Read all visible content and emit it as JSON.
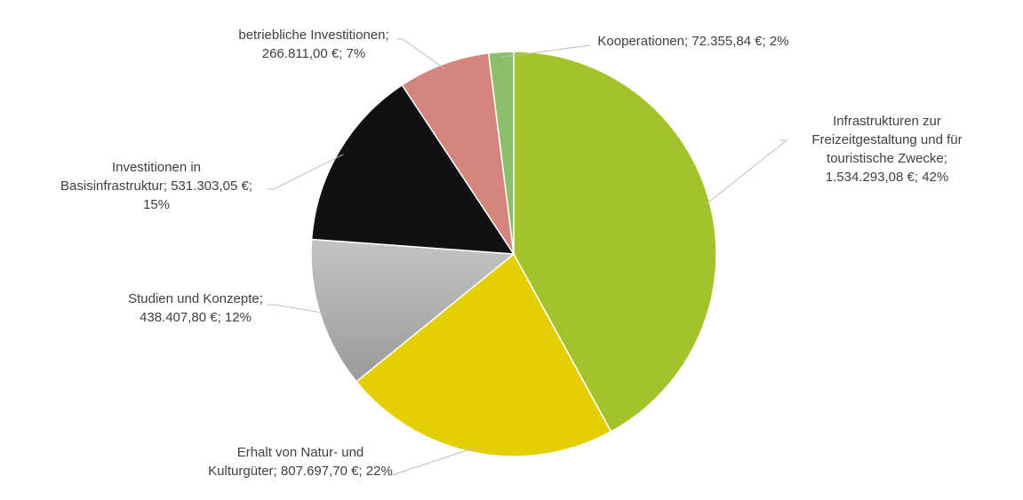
{
  "chart_data": {
    "type": "pie",
    "start_angle_deg": 0,
    "direction": "clockwise",
    "slices": [
      {
        "name": "Infrastrukturen zur Freizeitgestaltung und für touristische Zwecke",
        "value": 1534293.08,
        "value_label": "1.534.293,08 €",
        "percent_label": "42%",
        "color": "#A2C42A",
        "label_lines": [
          "Infrastrukturen zur",
          "Freizeitgestaltung und für",
          "touristische Zwecke;",
          "1.534.293,08 €; 42%"
        ]
      },
      {
        "name": "Erhalt von Natur- und Kulturgüter",
        "value": 807697.7,
        "value_label": "807.697,70 €",
        "percent_label": "22%",
        "color": "#E4D000",
        "label_lines": [
          "Erhalt von Natur- und",
          "Kulturgüter; 807.697,70 €; 22%"
        ]
      },
      {
        "name": "Studien und Konzepte",
        "value": 438407.8,
        "value_label": "438.407,80 €",
        "percent_label": "12%",
        "color": "#B5B5B5",
        "label_lines": [
          "Studien und Konzepte;",
          "438.407,80 €; 12%"
        ]
      },
      {
        "name": "Investitionen in Basisinfrastruktur",
        "value": 531303.05,
        "value_label": "531.303,05 €",
        "percent_label": "15%",
        "color": "#111111",
        "label_lines": [
          "Investitionen in",
          "Basisinfrastruktur; 531.303,05 €;",
          "15%"
        ]
      },
      {
        "name": "betriebliche Investitionen",
        "value": 266811.0,
        "value_label": "266.811,00 €",
        "percent_label": "7%",
        "color": "#D4857D",
        "label_lines": [
          "betriebliche Investitionen;",
          "266.811,00 €; 7%"
        ]
      },
      {
        "name": "Kooperationen",
        "value": 72355.84,
        "value_label": "72.355,84 €",
        "percent_label": "2%",
        "color": "#8BC06B",
        "label_lines": [
          "Kooperationen; 72.355,84 €; 2%"
        ]
      }
    ]
  }
}
